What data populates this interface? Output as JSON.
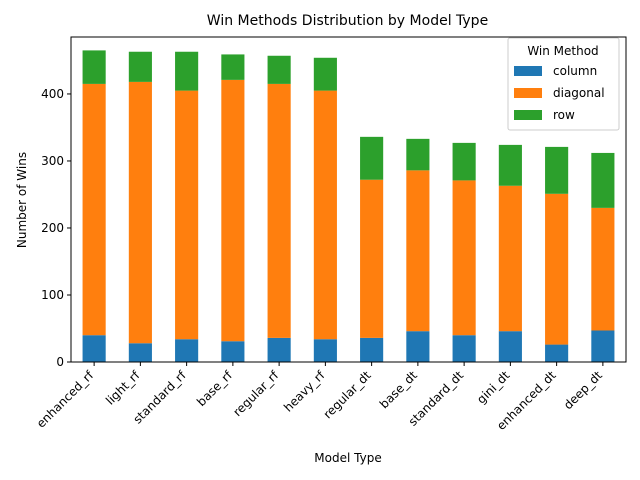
{
  "chart_data": {
    "type": "bar",
    "stacked": true,
    "title": "Win Methods Distribution by Model Type",
    "xlabel": "Model Type",
    "ylabel": "Number of Wins",
    "ylim": [
      0,
      485
    ],
    "yticks": [
      0,
      100,
      200,
      300,
      400
    ],
    "grid": false,
    "legend": {
      "title": "Win Method",
      "placement": "top-right"
    },
    "categories": [
      "enhanced_rf",
      "light_rf",
      "standard_rf",
      "base_rf",
      "regular_rf",
      "heavy_rf",
      "regular_dt",
      "base_dt",
      "standard_dt",
      "gini_dt",
      "enhanced_dt",
      "deep_dt"
    ],
    "series": [
      {
        "name": "column",
        "color": "#1f77b4",
        "values": [
          40,
          28,
          34,
          31,
          36,
          34,
          36,
          46,
          40,
          46,
          26,
          47
        ]
      },
      {
        "name": "diagonal",
        "color": "#ff7f0e",
        "values": [
          375,
          390,
          371,
          390,
          379,
          371,
          236,
          240,
          231,
          217,
          225,
          183
        ]
      },
      {
        "name": "row",
        "color": "#2ca02c",
        "values": [
          50,
          45,
          58,
          38,
          42,
          49,
          64,
          47,
          56,
          61,
          70,
          82
        ]
      }
    ]
  }
}
